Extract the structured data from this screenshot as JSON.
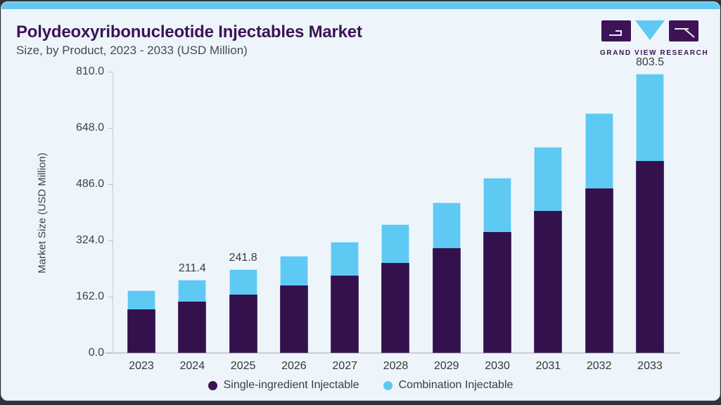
{
  "header": {
    "title": "Polydeoxyribonucleotide Injectables Market",
    "subtitle": "Size, by Product, 2023 - 2033 (USD Million)"
  },
  "logo": {
    "wordmark": "GRAND VIEW RESEARCH"
  },
  "colors": {
    "single_ingredient": "#33114d",
    "combination": "#5ec9f3",
    "accent_bar": "#66c6ef",
    "title_text": "#3d1356",
    "card_background": "#eef5fa",
    "page_edge": "#303338"
  },
  "chart_data": {
    "type": "bar",
    "stacked": true,
    "title": "Polydeoxyribonucleotide Injectables Market",
    "subtitle": "Size, by Product, 2023 - 2033 (USD Million)",
    "xlabel": "",
    "ylabel": "Market Size (USD Million)",
    "ylim": [
      0,
      810
    ],
    "ytick_labels": [
      "810.0",
      "648.0",
      "486.0",
      "324.0",
      "162.0",
      "0.0"
    ],
    "grid": false,
    "legend_position": "bottom",
    "categories": [
      "2023",
      "2024",
      "2025",
      "2026",
      "2027",
      "2028",
      "2029",
      "2030",
      "2031",
      "2032",
      "2033"
    ],
    "series": [
      {
        "name": "Single-ingredient Injectable",
        "color": "#33114d",
        "values": [
          126.4,
          147.8,
          169.0,
          193.9,
          223.5,
          258.9,
          301.4,
          349.3,
          409.6,
          474.6,
          553.1
        ]
      },
      {
        "name": "Combination Injectable",
        "color": "#5ec9f3",
        "values": [
          53.1,
          63.6,
          72.8,
          84.8,
          96.0,
          111.6,
          132.8,
          155.7,
          183.8,
          215.8,
          250.4
        ]
      }
    ],
    "totals": [
      179.5,
      211.4,
      241.8,
      278.7,
      319.5,
      370.5,
      434.2,
      505.0,
      593.4,
      690.4,
      803.5
    ],
    "total_labels": {
      "2024": "211.4",
      "2025": "241.8",
      "2033": "803.5"
    }
  }
}
